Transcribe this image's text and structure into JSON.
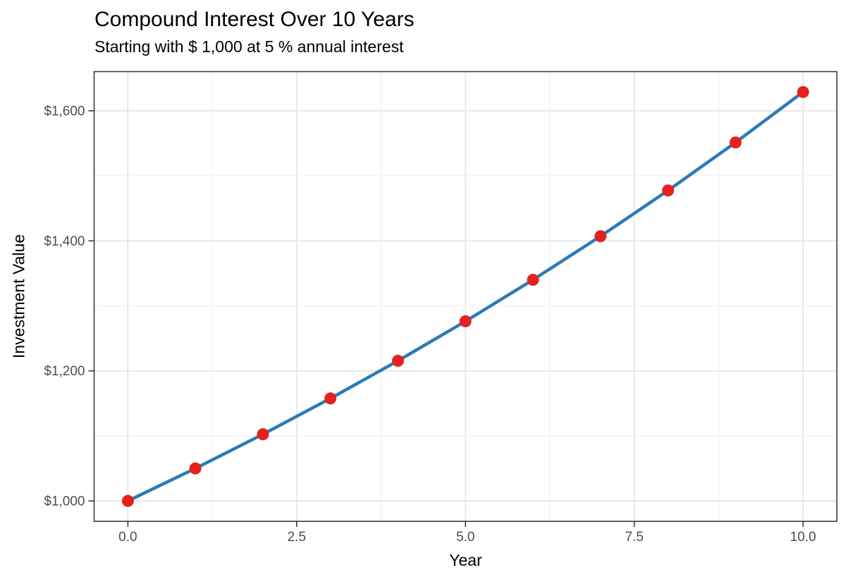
{
  "chart_data": {
    "type": "line",
    "title": "Compound Interest Over 10 Years",
    "subtitle": "Starting with $ 1,000 at 5 % annual interest",
    "xlabel": "Year",
    "ylabel": "Investment Value",
    "x": [
      0,
      1,
      2,
      3,
      4,
      5,
      6,
      7,
      8,
      9,
      10
    ],
    "y": [
      1000,
      1050,
      1102.5,
      1157.63,
      1215.51,
      1276.28,
      1340.1,
      1407.1,
      1477.46,
      1551.33,
      1628.89
    ],
    "xlim": [
      -0.5,
      10.5
    ],
    "ylim": [
      968.6,
      1660.3
    ],
    "x_major_ticks": {
      "values": [
        0,
        2.5,
        5,
        7.5,
        10
      ],
      "labels": [
        "0.0",
        "2.5",
        "5.0",
        "7.5",
        "10.0"
      ]
    },
    "x_minor_ticks": [
      1.25,
      3.75,
      6.25,
      8.75
    ],
    "y_major_ticks": {
      "values": [
        1000,
        1200,
        1400,
        1600
      ],
      "labels": [
        "$1,000",
        "$1,200",
        "$1,400",
        "$1,600"
      ]
    },
    "y_minor_ticks": [
      1100,
      1300,
      1500
    ],
    "grid": true,
    "legend": "none"
  },
  "style": {
    "line_color": "#2b7ab7",
    "point_color": "#e4211f",
    "grid_major_color": "#e6e6e6",
    "grid_minor_color": "#f0f0f0",
    "panel_border_color": "#3c3c3c",
    "tick_color": "#3c3c3c",
    "axis_text_color": "#4d4d4d",
    "title_color": "#000000",
    "background": "#ffffff"
  }
}
